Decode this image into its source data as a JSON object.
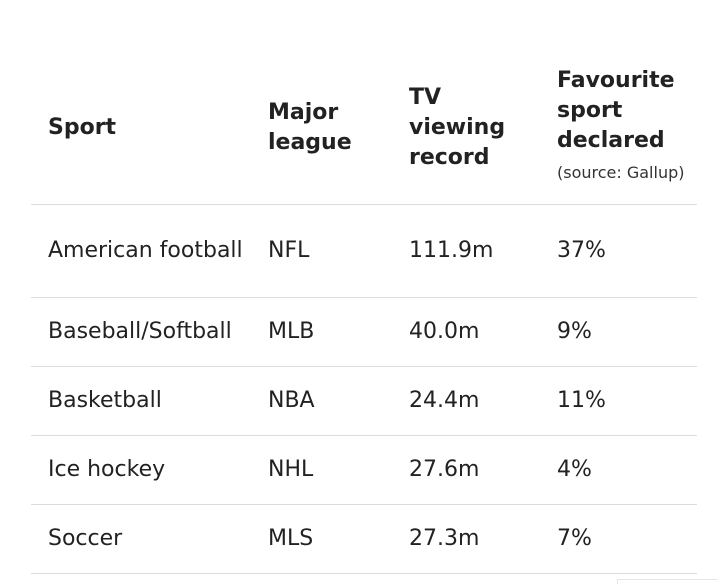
{
  "table": {
    "headers": {
      "sport": "Sport",
      "league": "Major league",
      "tv": "TV viewing record",
      "favourite": "Favourite sport declared",
      "favourite_source": "(source: Gallup)"
    },
    "rows": [
      {
        "sport": "American football",
        "league": "NFL",
        "tv": "111.9m",
        "favourite": "37%"
      },
      {
        "sport": "Baseball/Softball",
        "league": "MLB",
        "tv": "40.0m",
        "favourite": "9%"
      },
      {
        "sport": "Basketball",
        "league": "NBA",
        "tv": "24.4m",
        "favourite": "11%"
      },
      {
        "sport": "Ice hockey",
        "league": "NHL",
        "tv": "27.6m",
        "favourite": "4%"
      },
      {
        "sport": "Soccer",
        "league": "MLS",
        "tv": "27.3m",
        "favourite": "7%"
      }
    ]
  }
}
